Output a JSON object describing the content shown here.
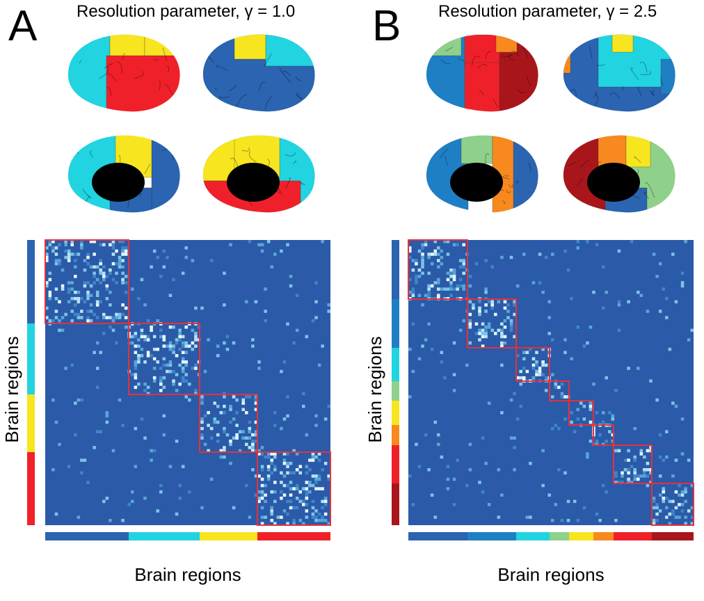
{
  "panels": [
    {
      "label": "A",
      "title": "Resolution parameter, γ = 1.0",
      "y_label": "Brain regions",
      "x_label": "Brain regions"
    },
    {
      "label": "B",
      "title": "Resolution parameter, γ = 2.5",
      "y_label": "Brain regions",
      "x_label": "Brain regions"
    }
  ]
}
